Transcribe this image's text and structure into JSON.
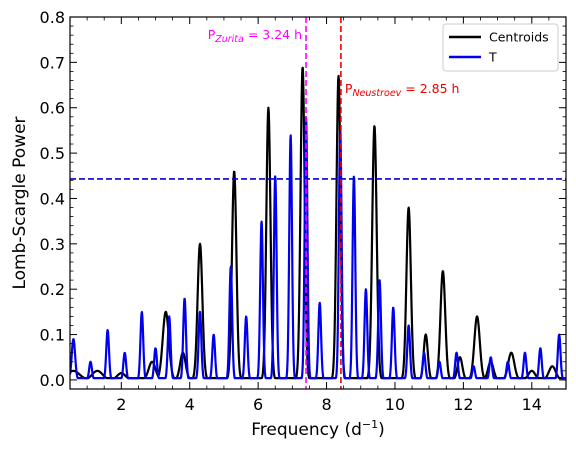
{
  "chart_data": {
    "type": "line",
    "title": "",
    "xlabel": "Frequency (d",
    "xlabel_sup": "−1",
    "xlabel_close": ")",
    "ylabel": "Lomb-Scargle Power",
    "xlim": [
      0.5,
      15.0
    ],
    "ylim": [
      -0.02,
      0.8
    ],
    "xticks": [
      2,
      4,
      6,
      8,
      10,
      12,
      14
    ],
    "xtick_labels": [
      "2",
      "4",
      "6",
      "8",
      "10",
      "12",
      "14"
    ],
    "yticks": [
      0.0,
      0.1,
      0.2,
      0.3,
      0.4,
      0.5,
      0.6,
      0.7,
      0.8
    ],
    "ytick_labels": [
      "0.0",
      "0.1",
      "0.2",
      "0.3",
      "0.4",
      "0.5",
      "0.6",
      "0.7",
      "0.8"
    ],
    "legend_position": "top-right",
    "series": [
      {
        "name": "Centroids",
        "color": "#000000",
        "peaks": [
          [
            0.6,
            0.02,
            0.18
          ],
          [
            1.3,
            0.02,
            0.15
          ],
          [
            2.0,
            0.015,
            0.12
          ],
          [
            2.9,
            0.04,
            0.1
          ],
          [
            3.3,
            0.15,
            0.09
          ],
          [
            3.8,
            0.06,
            0.08
          ],
          [
            4.3,
            0.3,
            0.07
          ],
          [
            5.3,
            0.46,
            0.065
          ],
          [
            6.3,
            0.6,
            0.06
          ],
          [
            7.3,
            0.69,
            0.06
          ],
          [
            8.35,
            0.67,
            0.06
          ],
          [
            9.4,
            0.56,
            0.065
          ],
          [
            10.4,
            0.38,
            0.065
          ],
          [
            10.9,
            0.1,
            0.06
          ],
          [
            11.4,
            0.24,
            0.07
          ],
          [
            11.9,
            0.05,
            0.07
          ],
          [
            12.4,
            0.14,
            0.08
          ],
          [
            12.8,
            0.04,
            0.08
          ],
          [
            13.4,
            0.06,
            0.09
          ],
          [
            14.0,
            0.02,
            0.1
          ],
          [
            14.6,
            0.03,
            0.1
          ]
        ]
      },
      {
        "name": "T",
        "color": "#0000ee",
        "peaks": [
          [
            0.6,
            0.09,
            0.05
          ],
          [
            1.1,
            0.04,
            0.04
          ],
          [
            1.6,
            0.11,
            0.04
          ],
          [
            2.1,
            0.06,
            0.04
          ],
          [
            2.6,
            0.15,
            0.04
          ],
          [
            3.0,
            0.07,
            0.04
          ],
          [
            3.4,
            0.14,
            0.04
          ],
          [
            3.85,
            0.18,
            0.04
          ],
          [
            4.3,
            0.15,
            0.04
          ],
          [
            4.7,
            0.1,
            0.04
          ],
          [
            5.2,
            0.25,
            0.04
          ],
          [
            5.65,
            0.14,
            0.04
          ],
          [
            6.1,
            0.35,
            0.04
          ],
          [
            6.5,
            0.45,
            0.04
          ],
          [
            6.95,
            0.54,
            0.04
          ],
          [
            7.4,
            0.58,
            0.04
          ],
          [
            7.8,
            0.17,
            0.04
          ],
          [
            8.4,
            0.55,
            0.04
          ],
          [
            8.8,
            0.45,
            0.04
          ],
          [
            9.15,
            0.2,
            0.04
          ],
          [
            9.55,
            0.22,
            0.04
          ],
          [
            9.95,
            0.16,
            0.04
          ],
          [
            10.4,
            0.12,
            0.04
          ],
          [
            10.85,
            0.06,
            0.04
          ],
          [
            11.3,
            0.04,
            0.04
          ],
          [
            11.8,
            0.06,
            0.04
          ],
          [
            12.3,
            0.03,
            0.04
          ],
          [
            12.8,
            0.05,
            0.04
          ],
          [
            13.3,
            0.04,
            0.04
          ],
          [
            13.8,
            0.06,
            0.04
          ],
          [
            14.25,
            0.07,
            0.04
          ],
          [
            14.8,
            0.1,
            0.04
          ]
        ]
      }
    ],
    "reference_lines": [
      {
        "orientation": "horizontal",
        "value": 0.443,
        "color": "#0000cc",
        "style": "dashed"
      },
      {
        "orientation": "vertical",
        "value": 7.4,
        "color": "#ff00ff",
        "style": "dashed"
      },
      {
        "orientation": "vertical",
        "value": 8.42,
        "color": "#ee0000",
        "style": "dashed"
      }
    ],
    "annotations": [
      {
        "name": "zurita",
        "prefix": "P",
        "subscript": "Zurita",
        "suffix": " = 3.24 h",
        "color": "#ff00ff"
      },
      {
        "name": "neustroev",
        "prefix": "P",
        "subscript": "Neustroev",
        "suffix": " = 2.85 h",
        "color": "#ee0000"
      }
    ]
  }
}
